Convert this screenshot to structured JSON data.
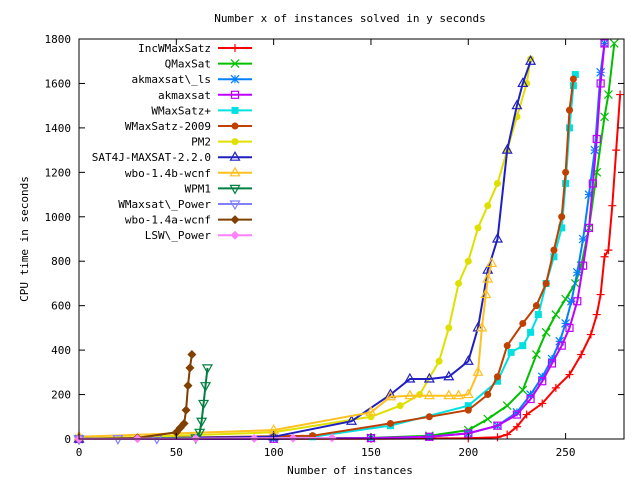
{
  "chart_data": {
    "type": "line",
    "title": "Number x of instances solved in y seconds",
    "xlabel": "Number of instances",
    "ylabel": "CPU time in seconds",
    "xlim": [
      0,
      280
    ],
    "ylim": [
      0,
      1800
    ],
    "x_ticks": [
      "0",
      "50",
      "100",
      "150",
      "200",
      "250"
    ],
    "y_ticks": [
      "0",
      "200",
      "400",
      "600",
      "800",
      "1000",
      "1200",
      "1400",
      "1600",
      "1800"
    ],
    "grid": false,
    "legend_position": "top-left",
    "series": [
      {
        "name": "IncWMaxSatz",
        "color": "#ff0000",
        "marker": "plus",
        "x": [
          0,
          150,
          200,
          215,
          220,
          225,
          230,
          238,
          245,
          252,
          258,
          263,
          266,
          268,
          270,
          272,
          274,
          276,
          278
        ],
        "y": [
          0,
          1,
          3,
          8,
          20,
          55,
          110,
          160,
          230,
          290,
          380,
          470,
          560,
          650,
          820,
          850,
          1050,
          1300,
          1550
        ]
      },
      {
        "name": "QMaxSat",
        "color": "#00c000",
        "marker": "cross",
        "x": [
          0,
          100,
          150,
          180,
          200,
          210,
          220,
          228,
          235,
          240,
          245,
          250,
          255,
          258,
          262,
          266,
          270,
          272,
          275
        ],
        "y": [
          0,
          2,
          5,
          15,
          40,
          90,
          150,
          220,
          380,
          480,
          560,
          630,
          700,
          780,
          950,
          1200,
          1450,
          1550,
          1780
        ]
      },
      {
        "name": "akmaxsat\\_ls",
        "color": "#0080ff",
        "marker": "star",
        "x": [
          0,
          100,
          150,
          180,
          200,
          215,
          225,
          232,
          238,
          243,
          247,
          250,
          253,
          256,
          259,
          262,
          265,
          268,
          270
        ],
        "y": [
          0,
          1,
          4,
          10,
          25,
          60,
          120,
          200,
          280,
          360,
          440,
          520,
          620,
          750,
          900,
          1100,
          1300,
          1650,
          1780
        ]
      },
      {
        "name": "akmaxsat",
        "color": "#c000ff",
        "marker": "box",
        "x": [
          0,
          100,
          150,
          180,
          200,
          215,
          225,
          232,
          238,
          243,
          248,
          252,
          256,
          259,
          262,
          264,
          266,
          268,
          270
        ],
        "y": [
          0,
          1,
          4,
          10,
          25,
          60,
          110,
          180,
          260,
          340,
          420,
          500,
          620,
          780,
          950,
          1150,
          1350,
          1600,
          1780
        ]
      },
      {
        "name": "WMaxSatz+",
        "color": "#00e0e0",
        "marker": "square",
        "x": [
          0,
          120,
          160,
          200,
          215,
          222,
          228,
          232,
          236,
          240,
          244,
          248,
          250,
          252,
          254,
          255
        ],
        "y": [
          0,
          10,
          60,
          150,
          260,
          390,
          420,
          480,
          560,
          700,
          820,
          950,
          1150,
          1400,
          1590,
          1640
        ]
      },
      {
        "name": "WMaxSatz-2009",
        "color": "#c04000",
        "marker": "circle",
        "x": [
          0,
          120,
          160,
          180,
          200,
          210,
          215,
          220,
          228,
          235,
          240,
          244,
          248,
          250,
          252,
          254
        ],
        "y": [
          0,
          15,
          70,
          100,
          130,
          200,
          280,
          420,
          520,
          600,
          700,
          850,
          1000,
          1200,
          1480,
          1620
        ]
      },
      {
        "name": "PM2",
        "color": "#e0e000",
        "marker": "circle",
        "x": [
          0,
          100,
          150,
          165,
          175,
          185,
          190,
          195,
          200,
          205,
          210,
          215,
          220,
          225,
          230,
          232
        ],
        "y": [
          0,
          30,
          100,
          150,
          200,
          350,
          500,
          700,
          800,
          950,
          1050,
          1150,
          1300,
          1450,
          1600,
          1710
        ]
      },
      {
        "name": "SAT4J-MAXSAT-2.2.0",
        "color": "#2020c0",
        "marker": "triangle",
        "x": [
          0,
          100,
          140,
          160,
          170,
          180,
          190,
          200,
          205,
          210,
          215,
          220,
          225,
          228,
          232
        ],
        "y": [
          0,
          10,
          80,
          200,
          270,
          270,
          280,
          350,
          500,
          760,
          900,
          1300,
          1500,
          1600,
          1700
        ]
      },
      {
        "name": "wbo-1.4b-wcnf",
        "color": "#ffc020",
        "marker": "triangle",
        "x": [
          0,
          100,
          150,
          160,
          170,
          180,
          190,
          195,
          200,
          205,
          207,
          209,
          210,
          212
        ],
        "y": [
          10,
          40,
          120,
          190,
          195,
          195,
          195,
          195,
          200,
          300,
          500,
          650,
          720,
          790
        ]
      },
      {
        "name": "WPM1",
        "color": "#008040",
        "marker": "triangle-down",
        "x": [
          0,
          60,
          62,
          63,
          64,
          65,
          66
        ],
        "y": [
          0,
          5,
          30,
          80,
          160,
          240,
          320
        ]
      },
      {
        "name": "WMaxsat\\_Power",
        "color": "#8080ff",
        "marker": "triangle-down",
        "x": [
          0,
          20,
          40
        ],
        "y": [
          0,
          1,
          2
        ]
      },
      {
        "name": "wbo-1.4a-wcnf",
        "color": "#804000",
        "marker": "diamond",
        "x": [
          0,
          30,
          50,
          52,
          54,
          55,
          56,
          57,
          58
        ],
        "y": [
          0,
          5,
          30,
          50,
          70,
          130,
          240,
          320,
          380
        ]
      },
      {
        "name": "LSW\\_Power",
        "color": "#ff80ff",
        "marker": "diamond",
        "x": [
          0,
          30,
          60,
          90,
          110,
          130
        ],
        "y": [
          0,
          1,
          2,
          3,
          4,
          5
        ]
      }
    ]
  }
}
